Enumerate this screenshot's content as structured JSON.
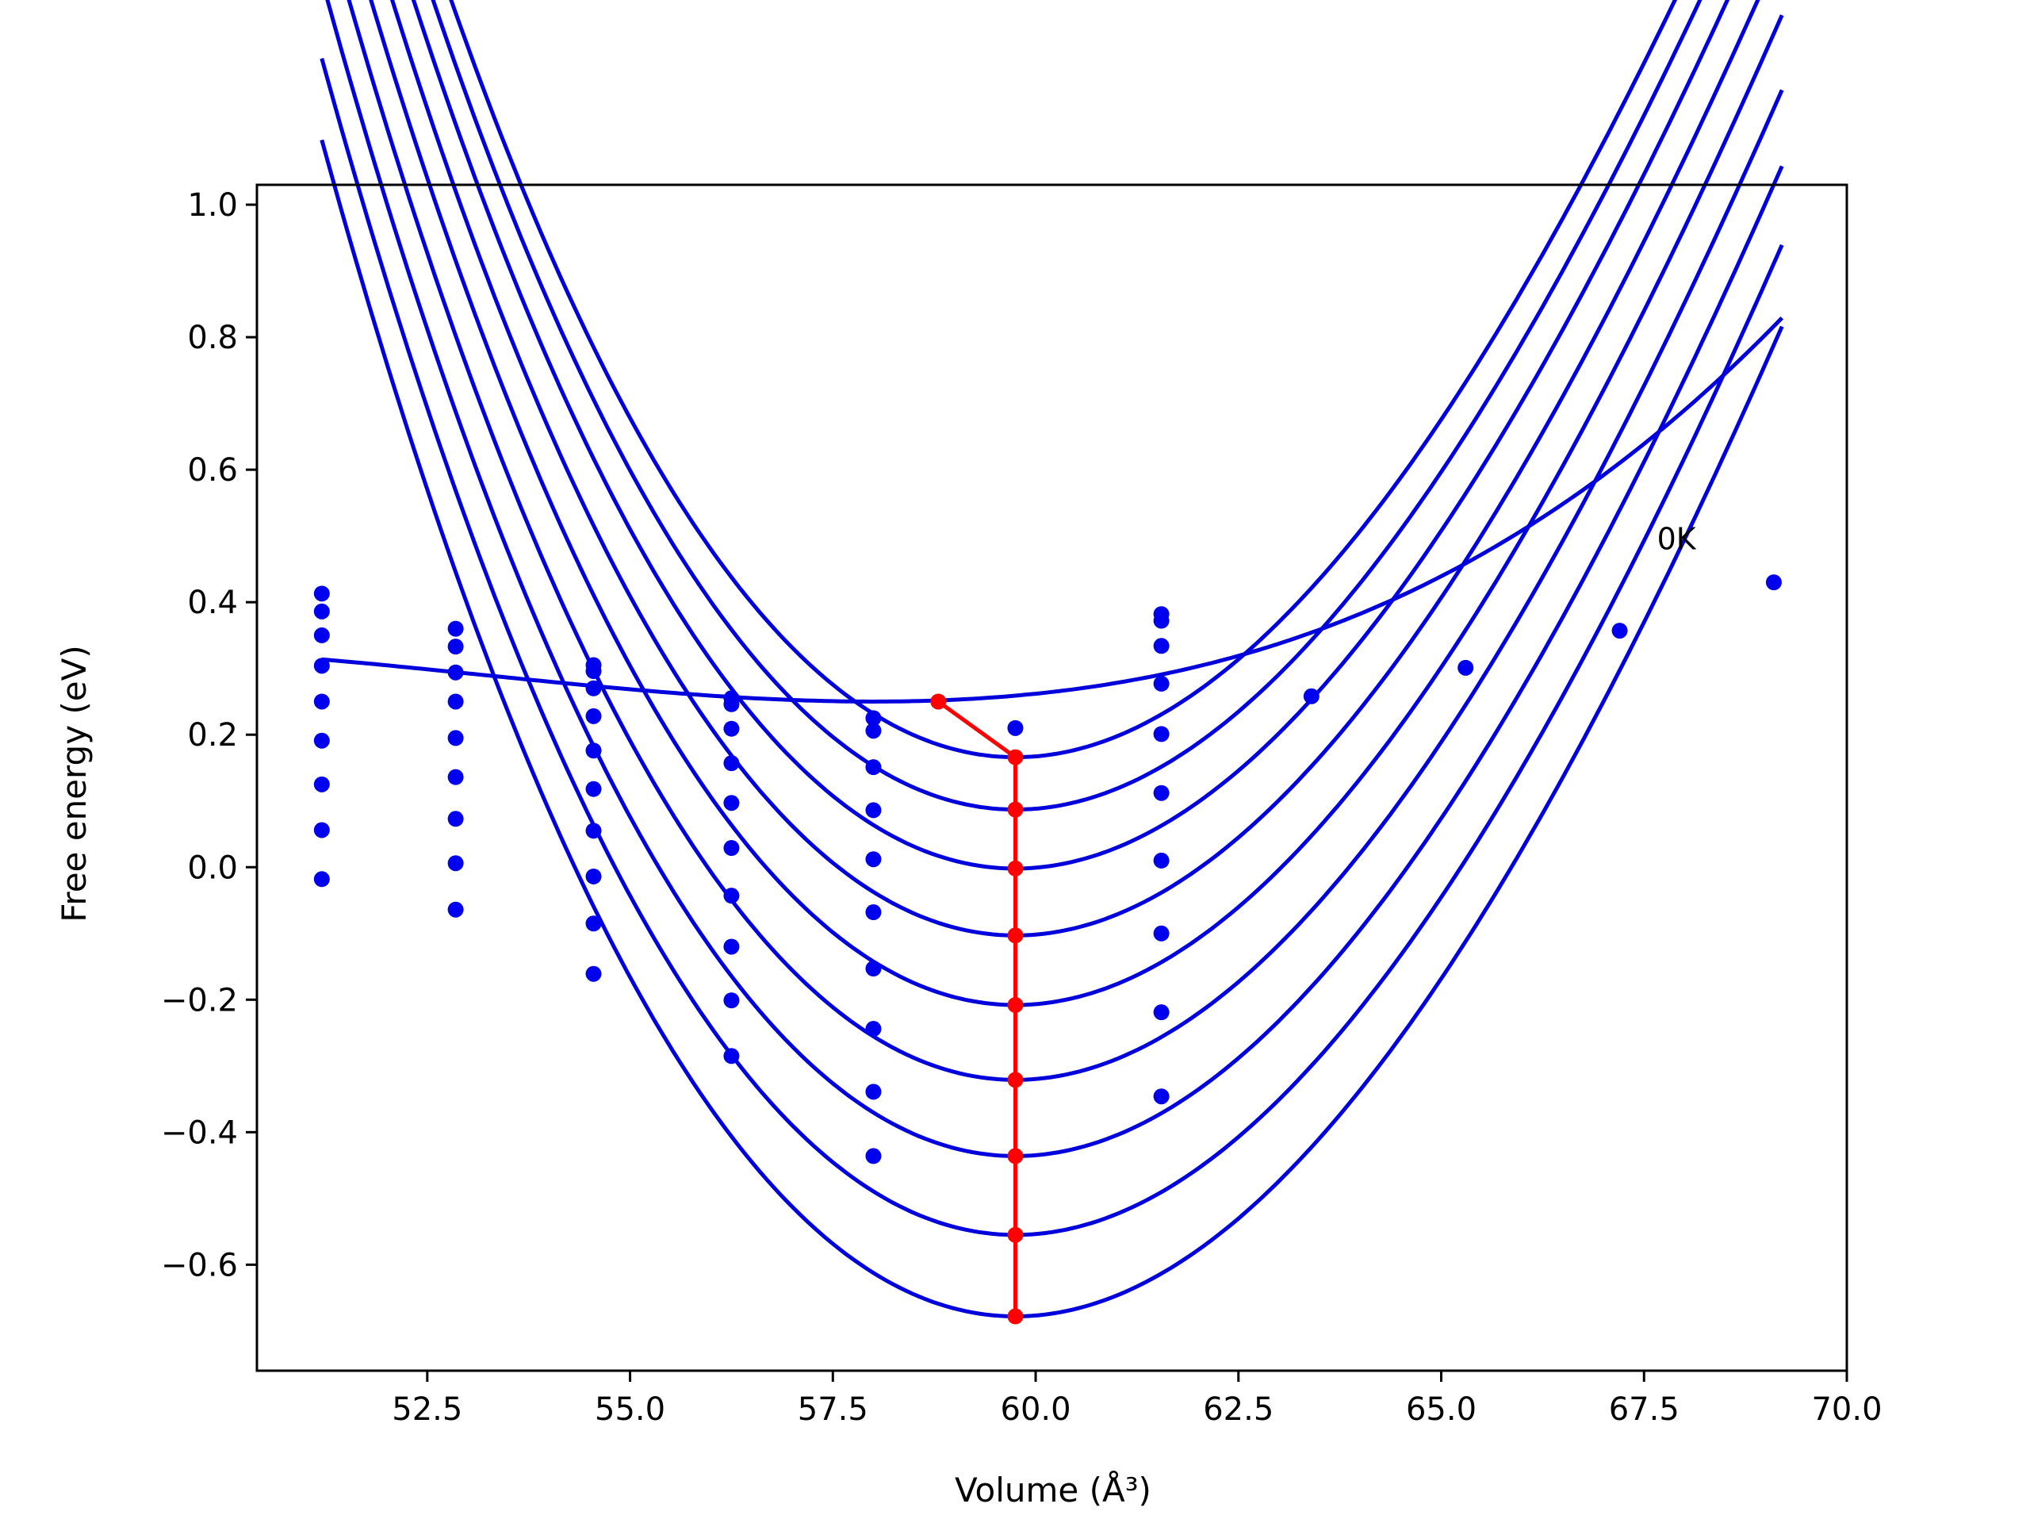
{
  "chart_data": {
    "type": "scatter",
    "title": "",
    "xlabel": "Volume (Å³)",
    "ylabel": "Free energy (eV)",
    "xlim": [
      50.4,
      70.0
    ],
    "ylim": [
      -0.76,
      1.03
    ],
    "x_ticks": [
      52.5,
      55.0,
      57.5,
      60.0,
      62.5,
      65.0,
      67.5,
      70.0
    ],
    "x_tick_labels": [
      "52.5",
      "55.0",
      "57.5",
      "60.0",
      "62.5",
      "65.0",
      "67.5",
      "70.0"
    ],
    "y_ticks": [
      -0.6,
      -0.4,
      -0.2,
      0.0,
      0.2,
      0.4,
      0.6,
      0.8,
      1.0
    ],
    "y_tick_labels": [
      "−0.6",
      "−0.4",
      "−0.2",
      "0.0",
      "0.2",
      "0.4",
      "0.6",
      "0.8",
      "1.0"
    ],
    "grid": false,
    "legend": "none",
    "colors": {
      "curves": "#0000dd",
      "points": "#0000ee",
      "minima": "#ff0000"
    },
    "annotations": [
      {
        "text": "0K",
        "x": 67.9,
        "y": 0.48
      }
    ],
    "fit_curves": [
      {
        "label": "0K",
        "x_start": 51.2,
        "x_end": 69.2,
        "v0": 58.0,
        "e0": 0.25,
        "a": 0.0026,
        "b": 0.00018
      },
      {
        "x_start": 51.2,
        "x_end": 69.2,
        "v0": 59.75,
        "e0": 0.166,
        "a": 0.0207,
        "b": -0.00042
      },
      {
        "x_start": 51.2,
        "x_end": 69.2,
        "v0": 59.75,
        "e0": 0.087,
        "a": 0.0207,
        "b": -0.00042
      },
      {
        "x_start": 51.2,
        "x_end": 69.2,
        "v0": 59.75,
        "e0": -0.002,
        "a": 0.0207,
        "b": -0.00042
      },
      {
        "x_start": 51.2,
        "x_end": 69.2,
        "v0": 59.75,
        "e0": -0.103,
        "a": 0.0207,
        "b": -0.00042
      },
      {
        "x_start": 51.2,
        "x_end": 69.2,
        "v0": 59.75,
        "e0": -0.208,
        "a": 0.0207,
        "b": -0.00042
      },
      {
        "x_start": 51.2,
        "x_end": 69.2,
        "v0": 59.75,
        "e0": -0.321,
        "a": 0.0207,
        "b": -0.00042
      },
      {
        "x_start": 51.2,
        "x_end": 69.2,
        "v0": 59.75,
        "e0": -0.436,
        "a": 0.0207,
        "b": -0.00042
      },
      {
        "x_start": 51.2,
        "x_end": 69.2,
        "v0": 59.75,
        "e0": -0.555,
        "a": 0.0207,
        "b": -0.00042
      },
      {
        "x_start": 51.2,
        "x_end": 69.2,
        "v0": 59.75,
        "e0": -0.678,
        "a": 0.0207,
        "b": -0.00042
      }
    ],
    "data_points": [
      {
        "x": 51.2,
        "y": 0.413
      },
      {
        "x": 51.2,
        "y": 0.386
      },
      {
        "x": 51.2,
        "y": 0.35
      },
      {
        "x": 51.2,
        "y": 0.304
      },
      {
        "x": 51.2,
        "y": 0.25
      },
      {
        "x": 51.2,
        "y": 0.191
      },
      {
        "x": 51.2,
        "y": 0.125
      },
      {
        "x": 51.2,
        "y": 0.056
      },
      {
        "x": 51.2,
        "y": -0.018
      },
      {
        "x": 52.85,
        "y": 0.36
      },
      {
        "x": 52.85,
        "y": 0.333
      },
      {
        "x": 52.85,
        "y": 0.294
      },
      {
        "x": 52.85,
        "y": 0.25
      },
      {
        "x": 52.85,
        "y": 0.195
      },
      {
        "x": 52.85,
        "y": 0.136
      },
      {
        "x": 52.85,
        "y": 0.073
      },
      {
        "x": 52.85,
        "y": 0.006
      },
      {
        "x": 52.85,
        "y": -0.064
      },
      {
        "x": 54.55,
        "y": 0.305
      },
      {
        "x": 54.55,
        "y": 0.296
      },
      {
        "x": 54.55,
        "y": 0.27
      },
      {
        "x": 54.55,
        "y": 0.228
      },
      {
        "x": 54.55,
        "y": 0.176
      },
      {
        "x": 54.55,
        "y": 0.118
      },
      {
        "x": 54.55,
        "y": 0.055
      },
      {
        "x": 54.55,
        "y": -0.014
      },
      {
        "x": 54.55,
        "y": -0.085
      },
      {
        "x": 54.55,
        "y": -0.161
      },
      {
        "x": 56.25,
        "y": 0.255
      },
      {
        "x": 56.25,
        "y": 0.246
      },
      {
        "x": 56.25,
        "y": 0.209
      },
      {
        "x": 56.25,
        "y": 0.157
      },
      {
        "x": 56.25,
        "y": 0.097
      },
      {
        "x": 56.25,
        "y": 0.029
      },
      {
        "x": 56.25,
        "y": -0.043
      },
      {
        "x": 56.25,
        "y": -0.12
      },
      {
        "x": 56.25,
        "y": -0.201
      },
      {
        "x": 56.25,
        "y": -0.285
      },
      {
        "x": 58.0,
        "y": 0.225
      },
      {
        "x": 58.0,
        "y": 0.206
      },
      {
        "x": 58.0,
        "y": 0.151
      },
      {
        "x": 58.0,
        "y": 0.086
      },
      {
        "x": 58.0,
        "y": 0.012
      },
      {
        "x": 58.0,
        "y": -0.068
      },
      {
        "x": 58.0,
        "y": -0.153
      },
      {
        "x": 58.0,
        "y": -0.244
      },
      {
        "x": 58.0,
        "y": -0.339
      },
      {
        "x": 58.0,
        "y": -0.436
      },
      {
        "x": 59.75,
        "y": 0.21
      },
      {
        "x": 61.55,
        "y": 0.382
      },
      {
        "x": 61.55,
        "y": 0.372
      },
      {
        "x": 61.55,
        "y": 0.334
      },
      {
        "x": 61.55,
        "y": 0.277
      },
      {
        "x": 61.55,
        "y": 0.201
      },
      {
        "x": 61.55,
        "y": 0.112
      },
      {
        "x": 61.55,
        "y": 0.01
      },
      {
        "x": 61.55,
        "y": -0.1
      },
      {
        "x": 61.55,
        "y": -0.219
      },
      {
        "x": 61.55,
        "y": -0.346
      },
      {
        "x": 63.4,
        "y": 0.258
      },
      {
        "x": 65.3,
        "y": 0.301
      },
      {
        "x": 67.2,
        "y": 0.357
      },
      {
        "x": 69.1,
        "y": 0.43
      }
    ],
    "minima_path": [
      {
        "x": 58.8,
        "y": 0.25
      },
      {
        "x": 59.75,
        "y": 0.166
      },
      {
        "x": 59.75,
        "y": 0.087
      },
      {
        "x": 59.75,
        "y": -0.002
      },
      {
        "x": 59.75,
        "y": -0.103
      },
      {
        "x": 59.75,
        "y": -0.208
      },
      {
        "x": 59.75,
        "y": -0.321
      },
      {
        "x": 59.75,
        "y": -0.436
      },
      {
        "x": 59.75,
        "y": -0.555
      },
      {
        "x": 59.75,
        "y": -0.678
      }
    ]
  }
}
